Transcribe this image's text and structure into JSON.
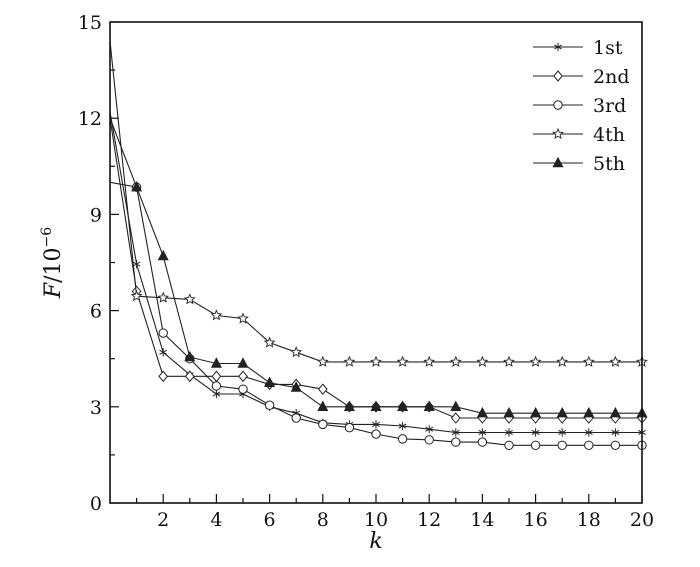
{
  "chart_data": {
    "type": "line",
    "title": "",
    "xlabel": "k",
    "ylabel": {
      "variable": "F",
      "rest": "/10",
      "exponent": "−6"
    },
    "xlim": [
      0,
      20
    ],
    "ylim": [
      0,
      15
    ],
    "xticks": [
      2,
      4,
      6,
      8,
      10,
      12,
      14,
      16,
      18,
      20
    ],
    "yticks": [
      0,
      3,
      6,
      9,
      12,
      15
    ],
    "grid": false,
    "legend_position": "top-right",
    "color": "#222222",
    "series": [
      {
        "name": "1st",
        "marker": "asterisk",
        "x": [
          0,
          1,
          2,
          3,
          4,
          5,
          6,
          7,
          8,
          9,
          10,
          11,
          12,
          13,
          14,
          15,
          16,
          17,
          18,
          19,
          20
        ],
        "y": [
          12.2,
          7.45,
          4.7,
          4.0,
          3.4,
          3.4,
          3.0,
          2.8,
          2.5,
          2.45,
          2.45,
          2.4,
          2.3,
          2.2,
          2.2,
          2.2,
          2.2,
          2.2,
          2.2,
          2.2,
          2.2
        ]
      },
      {
        "name": "2nd",
        "marker": "diamond",
        "x": [
          0,
          1,
          2,
          3,
          4,
          5,
          6,
          7,
          8,
          9,
          10,
          11,
          12,
          13,
          14,
          15,
          16,
          17,
          18,
          19,
          20
        ],
        "y": [
          12.0,
          6.6,
          3.95,
          3.95,
          3.95,
          3.95,
          3.7,
          3.7,
          3.55,
          3.0,
          3.0,
          3.0,
          3.0,
          2.65,
          2.65,
          2.65,
          2.65,
          2.65,
          2.65,
          2.65,
          2.65
        ]
      },
      {
        "name": "3rd",
        "marker": "circle",
        "x": [
          0,
          1,
          2,
          3,
          4,
          5,
          6,
          7,
          8,
          9,
          10,
          11,
          12,
          13,
          14,
          15,
          16,
          17,
          18,
          19,
          20
        ],
        "y": [
          10.0,
          9.85,
          5.3,
          4.5,
          3.65,
          3.55,
          3.05,
          2.65,
          2.45,
          2.35,
          2.15,
          2.0,
          1.97,
          1.9,
          1.9,
          1.8,
          1.8,
          1.8,
          1.8,
          1.8,
          1.8
        ]
      },
      {
        "name": "4th",
        "marker": "star",
        "x": [
          0,
          1,
          2,
          3,
          4,
          5,
          6,
          7,
          8,
          9,
          10,
          11,
          12,
          13,
          14,
          15,
          16,
          17,
          18,
          19,
          20
        ],
        "y": [
          14.4,
          6.45,
          6.4,
          6.35,
          5.85,
          5.75,
          5.0,
          4.7,
          4.4,
          4.4,
          4.4,
          4.4,
          4.4,
          4.4,
          4.4,
          4.4,
          4.4,
          4.4,
          4.4,
          4.4,
          4.4
        ]
      },
      {
        "name": "5th",
        "marker": "triangle",
        "x": [
          0,
          1,
          2,
          3,
          4,
          5,
          6,
          7,
          8,
          9,
          10,
          11,
          12,
          13,
          14,
          15,
          16,
          17,
          18,
          19,
          20
        ],
        "y": [
          12.0,
          9.85,
          7.7,
          4.55,
          4.35,
          4.35,
          3.75,
          3.6,
          3.0,
          3.0,
          3.0,
          3.0,
          3.0,
          3.0,
          2.8,
          2.8,
          2.8,
          2.8,
          2.8,
          2.8,
          2.8
        ]
      }
    ]
  }
}
